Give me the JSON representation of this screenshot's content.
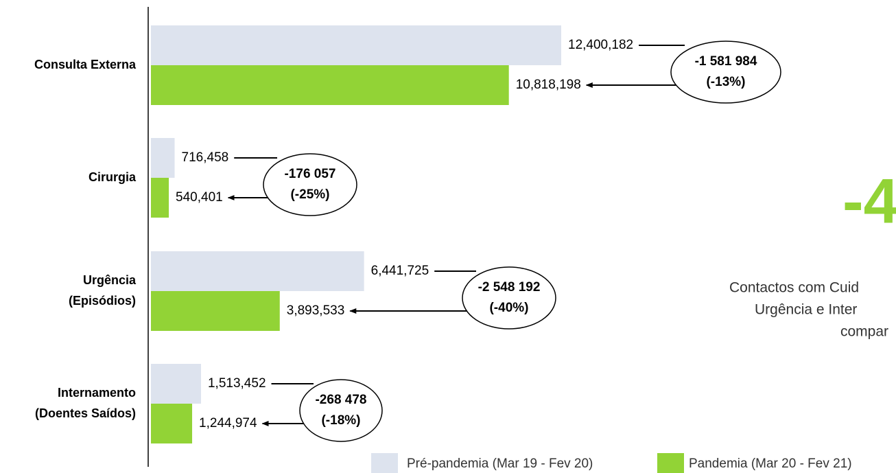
{
  "chart_data": {
    "type": "barh",
    "categories": [
      [
        "Consulta Externa"
      ],
      [
        "Cirurgia"
      ],
      [
        "Urgência",
        "(Episódios)"
      ],
      [
        "Internamento",
        "(Doentes Saídos)"
      ]
    ],
    "series": [
      {
        "name": "Pré-pandemia (Mar 19 - Fev 20)",
        "color": "#dde3ee",
        "values": [
          12400182,
          716458,
          6441725,
          1513452
        ],
        "value_labels": [
          "12,400,182",
          "716,458",
          "6,441,725",
          "1,513,452"
        ]
      },
      {
        "name": "Pandemia (Mar 20 - Fev 21)",
        "color": "#92d336",
        "values": [
          10818198,
          540401,
          3893533,
          1244974
        ],
        "value_labels": [
          "10,818,198",
          "540,401",
          "3,893,533",
          "1,244,974"
        ]
      }
    ],
    "annotations": [
      {
        "lines": [
          "-1 581 984",
          "(-13%)"
        ]
      },
      {
        "lines": [
          "-176 057",
          "(-25%)"
        ]
      },
      {
        "lines": [
          "-2 548 192",
          "(-40%)"
        ]
      },
      {
        "lines": [
          "-268 478",
          "(-18%)"
        ]
      }
    ],
    "side_headline": "-4",
    "side_text": [
      "Contactos com Cuid",
      "Urgência e Inter",
      "compar"
    ],
    "side_color": "#92d336",
    "legend": "bottom"
  }
}
